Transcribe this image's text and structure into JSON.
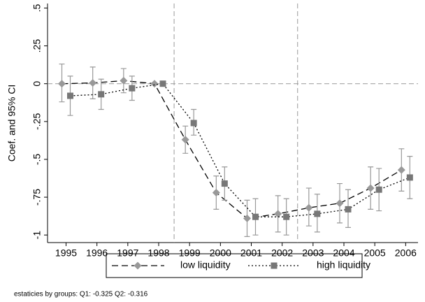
{
  "chart_data": {
    "type": "line",
    "y_label": "Coef. and 95% CI",
    "note": "estaticies by groups: Q1:   -0.325 Q2:   -0.316",
    "x": [
      1995,
      1996,
      1997,
      1998,
      1999,
      2000,
      2001,
      2002,
      2003,
      2004,
      2005,
      2006
    ],
    "xlim": [
      1994.4,
      2006.4
    ],
    "xticks": [
      1995,
      1996,
      1997,
      1998,
      1999,
      2000,
      2001,
      2002,
      2003,
      2004,
      2005,
      2006
    ],
    "ylim": [
      -1.05,
      0.53
    ],
    "yticks": [
      {
        "value": 0.5,
        "label": ".5"
      },
      {
        "value": 0.25,
        "label": ".25"
      },
      0,
      {
        "value": -0.25,
        "label": "-.25"
      },
      {
        "value": -0.5,
        "label": "-.5"
      },
      {
        "value": -0.75,
        "label": "-.75"
      },
      -1
    ],
    "vlines": [
      1998.5,
      2002.5
    ],
    "hline": 0,
    "series": [
      {
        "name": "low liquidity",
        "color": "#999999",
        "line_color": "#000000",
        "dash": "9 5",
        "marker": "diamond",
        "values": [
          0,
          0.005,
          0.02,
          0,
          -0.37,
          -0.72,
          -0.89,
          -0.86,
          -0.82,
          -0.79,
          -0.69,
          -0.57
        ],
        "lower": [
          -0.12,
          -0.1,
          -0.06,
          null,
          -0.46,
          -0.83,
          -1.01,
          -0.98,
          -0.94,
          -0.92,
          -0.83,
          -0.71
        ],
        "upper": [
          0.13,
          0.11,
          0.1,
          null,
          -0.28,
          -0.61,
          -0.77,
          -0.74,
          -0.69,
          -0.66,
          -0.55,
          -0.43
        ]
      },
      {
        "name": "high liquidity",
        "color": "#777777",
        "line_color": "#000000",
        "dash": "2 3",
        "marker": "square",
        "values": [
          -0.08,
          -0.07,
          -0.03,
          0,
          -0.26,
          -0.66,
          -0.88,
          -0.88,
          -0.86,
          -0.83,
          -0.7,
          -0.62
        ],
        "lower": [
          -0.21,
          -0.17,
          -0.11,
          null,
          -0.34,
          -0.77,
          -1.0,
          -1.0,
          -0.98,
          -0.95,
          -0.84,
          -0.76
        ],
        "upper": [
          0.05,
          0.03,
          0.05,
          null,
          -0.17,
          -0.55,
          -0.76,
          -0.76,
          -0.73,
          -0.7,
          -0.56,
          -0.48
        ]
      }
    ]
  }
}
